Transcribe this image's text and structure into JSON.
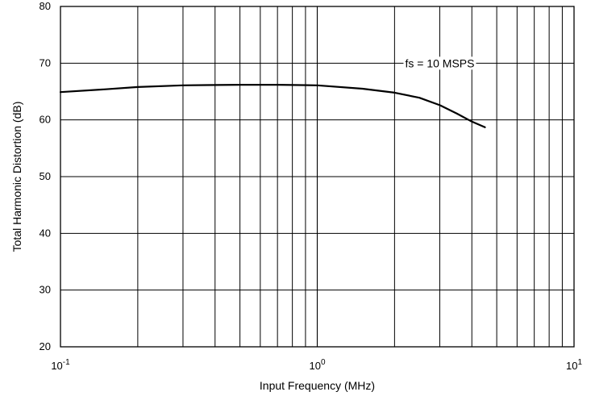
{
  "chart_data": {
    "type": "line",
    "title": "",
    "xlabel": "Input Frequency (MHz)",
    "ylabel": "Total Harmonic Distortion (dB)",
    "x_scale": "log",
    "xlim": [
      0.1,
      10
    ],
    "ylim": [
      20,
      80
    ],
    "grid": true,
    "y_ticks": [
      "20",
      "30",
      "40",
      "50",
      "60",
      "70",
      "80"
    ],
    "x_ticks": [
      {
        "base": "10",
        "exp": "-1"
      },
      {
        "base": "10",
        "exp": "0"
      },
      {
        "base": "10",
        "exp": "1"
      }
    ],
    "annotations": [
      {
        "text": "fs = 10 MSPS",
        "x": 3.0,
        "y": 70
      }
    ],
    "series": [
      {
        "x": [
          0.1,
          0.15,
          0.2,
          0.3,
          0.5,
          0.7,
          1.0,
          1.5,
          2.0,
          2.5,
          3.0,
          3.5,
          4.0,
          4.5
        ],
        "y": [
          64.9,
          65.4,
          65.8,
          66.1,
          66.2,
          66.2,
          66.1,
          65.5,
          64.8,
          63.9,
          62.6,
          61.1,
          59.7,
          58.7
        ]
      }
    ]
  }
}
